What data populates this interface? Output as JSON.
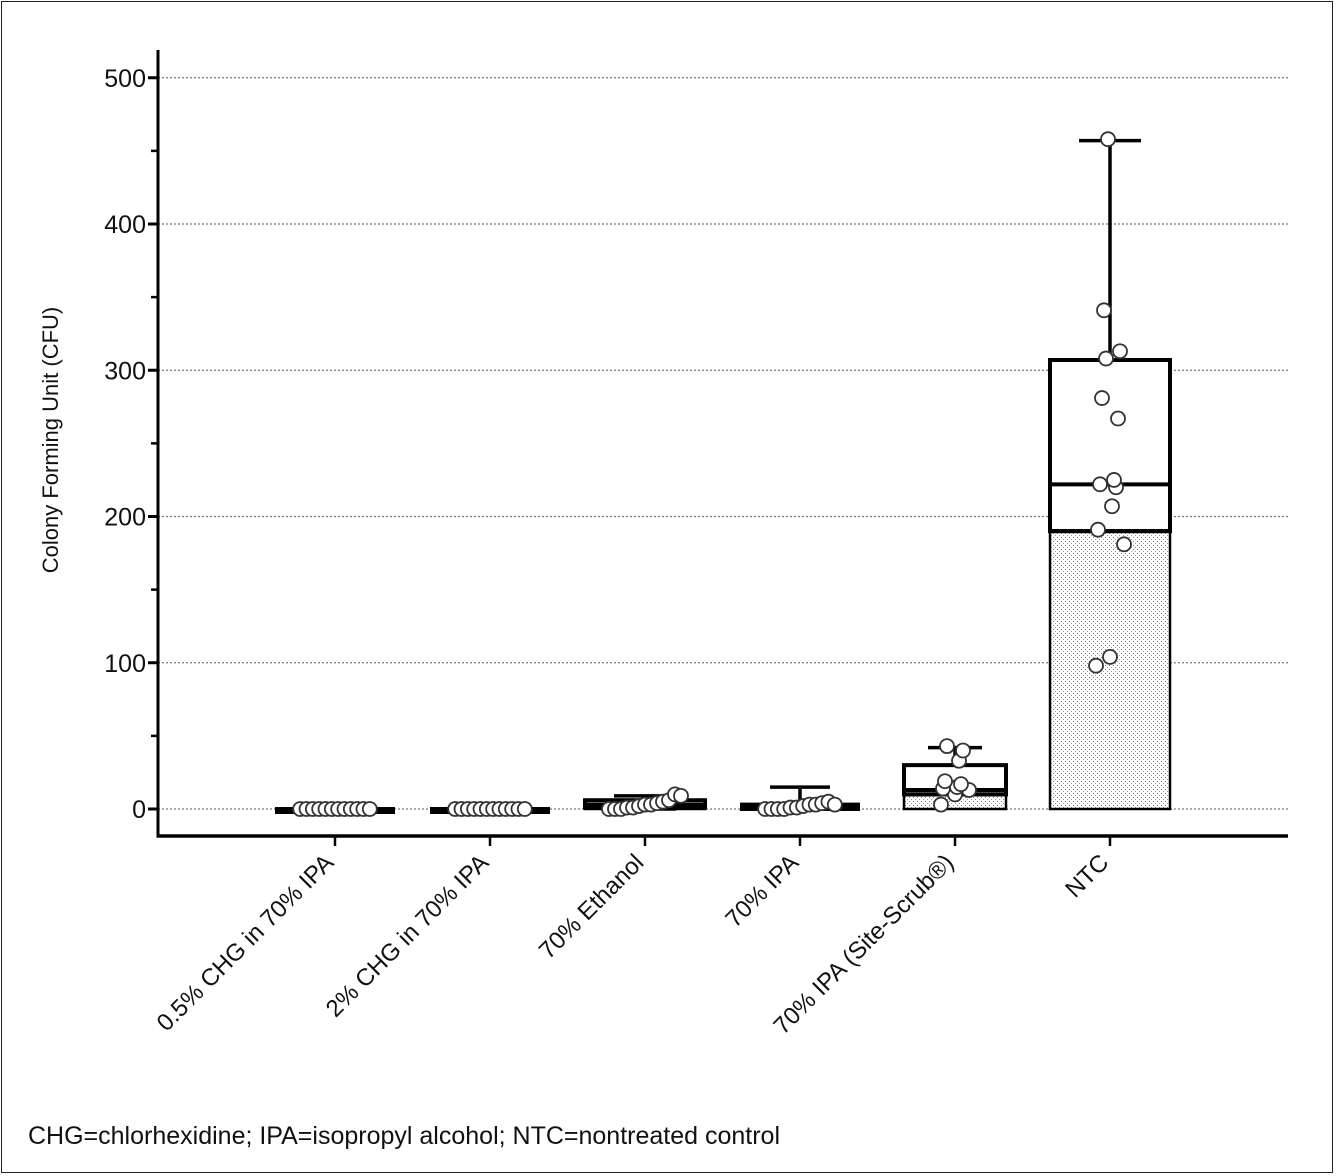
{
  "chart_data": {
    "type": "box",
    "xlabel": "",
    "ylabel": "Colony Forming Unit (CFU)",
    "ylim": [
      -18,
      520
    ],
    "yticks": [
      0,
      100,
      200,
      300,
      400,
      500
    ],
    "grid": true,
    "categories": [
      "0.5% CHG in 70% IPA",
      "2% CHG in 70% IPA",
      "70% Ethanol",
      "70% IPA",
      "70% IPA (Site-Scrub®)",
      "NTC"
    ],
    "boxes": [
      {
        "min": 0,
        "q1": 0,
        "median": 0,
        "q3": 0,
        "max": 0,
        "points": [
          0,
          0,
          0,
          0,
          0,
          0,
          0,
          0,
          0,
          0,
          0,
          0
        ]
      },
      {
        "min": 0,
        "q1": 0,
        "median": 0,
        "q3": 0,
        "max": 0,
        "points": [
          0,
          0,
          0,
          0,
          0,
          0,
          0,
          0,
          0,
          0,
          0,
          0
        ]
      },
      {
        "min": 0,
        "q1": 1,
        "median": 3,
        "q3": 6,
        "max": 9,
        "points": [
          0,
          0,
          0,
          1,
          1,
          2,
          3,
          3,
          4,
          5,
          6,
          10,
          9
        ]
      },
      {
        "min": 0,
        "q1": 0,
        "median": 1,
        "q3": 3,
        "max": 15,
        "points": [
          0,
          0,
          0,
          0,
          1,
          1,
          2,
          3,
          3,
          4,
          5,
          3
        ]
      },
      {
        "min": 3,
        "q1": 10,
        "median": 13,
        "q3": 30,
        "max": 42,
        "points": [
          3,
          10,
          13,
          14,
          15,
          17,
          19,
          33,
          40,
          43
        ]
      },
      {
        "min": 98,
        "q1": 190,
        "median": 222,
        "q3": 307,
        "max": 457,
        "points": [
          98,
          104,
          181,
          191,
          207,
          220,
          222,
          225,
          267,
          281,
          308,
          313,
          341,
          458
        ]
      }
    ]
  },
  "footnote": "CHG=chlorhexidine; IPA=isopropyl alcohol; NTC=nontreated control"
}
